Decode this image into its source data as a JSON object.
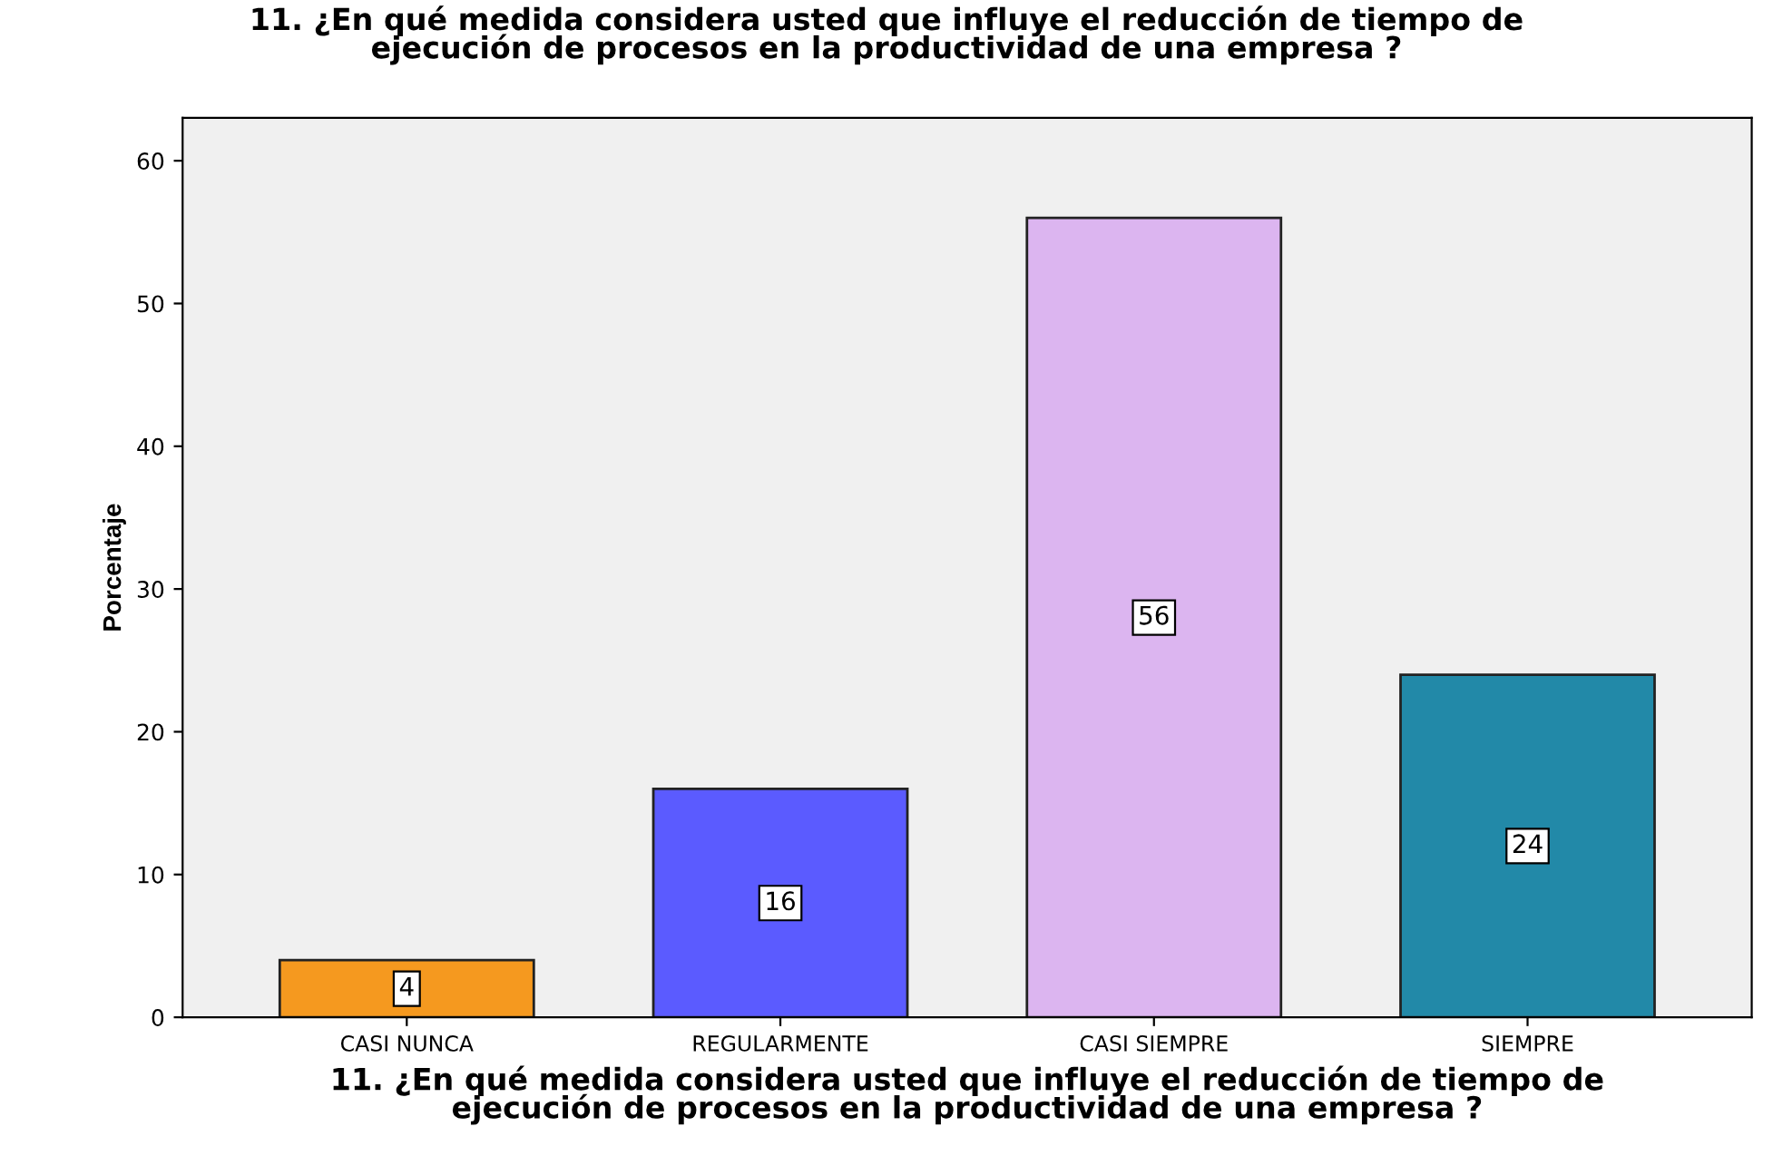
{
  "chart_data": {
    "type": "bar",
    "title": "11. ¿En qué medida considera usted que influye el reducción de tiempo de\nejecución de procesos en la productividad de una empresa ?",
    "xlabel": "11. ¿En qué medida considera usted que influye el reducción de tiempo de\nejecución de procesos en la productividad de una empresa ?",
    "ylabel": "Porcentaje",
    "categories": [
      "CASI NUNCA",
      "REGULARMENTE",
      "CASI SIEMPRE",
      "SIEMPRE"
    ],
    "values": [
      4,
      16,
      56,
      24
    ],
    "colors": [
      "#f5991f",
      "#5b5bff",
      "#dcb5f0",
      "#2289a8"
    ],
    "ylim": [
      0,
      63
    ],
    "yticks": [
      0,
      10,
      20,
      30,
      40,
      50,
      60
    ],
    "grid": false,
    "data_labels": true
  }
}
